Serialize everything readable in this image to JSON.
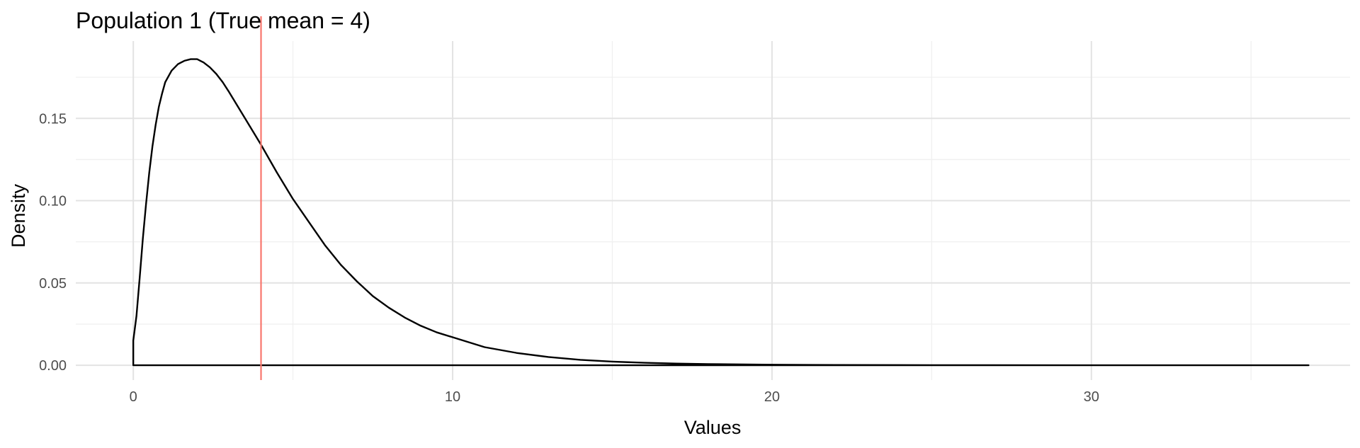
{
  "chart_data": {
    "type": "line",
    "title": "Population 1 (True mean = 4)",
    "xlabel": "Values",
    "ylabel": "Density",
    "xlim": [
      -1.8,
      38.1
    ],
    "ylim": [
      -0.009,
      0.197
    ],
    "x_ticks": [
      0,
      10,
      20,
      30
    ],
    "x_tick_labels": [
      "0",
      "10",
      "20",
      "30"
    ],
    "x_minor_ticks": [
      5,
      15,
      25,
      35
    ],
    "y_ticks": [
      0,
      0.05,
      0.1,
      0.15
    ],
    "y_tick_labels": [
      "0.00",
      "0.05",
      "0.10",
      "0.15"
    ],
    "y_minor_ticks": [
      0.025,
      0.075,
      0.125,
      0.175
    ],
    "grid": true,
    "legend": "none",
    "series": [
      {
        "color": "#000000",
        "x": [
          0,
          0,
          0.1,
          0.2,
          0.3,
          0.4,
          0.5,
          0.6,
          0.7,
          0.8,
          0.9,
          1.0,
          1.2,
          1.4,
          1.6,
          1.8,
          2.0,
          2.1,
          2.2,
          2.4,
          2.6,
          2.8,
          3.0,
          3.5,
          4.0,
          4.5,
          5.0,
          5.5,
          6.0,
          6.5,
          7.0,
          7.5,
          8.0,
          8.5,
          9.0,
          9.5,
          10.0,
          11.0,
          12.0,
          13.0,
          14.0,
          15.0,
          16.0,
          17.0,
          18.0,
          20.0,
          22.0,
          25.0,
          30.0,
          35.0,
          36.8,
          36.8
        ],
        "y": [
          0,
          0.015,
          0.03,
          0.053,
          0.077,
          0.098,
          0.117,
          0.133,
          0.146,
          0.157,
          0.165,
          0.172,
          0.179,
          0.183,
          0.185,
          0.186,
          0.186,
          0.185,
          0.184,
          0.181,
          0.177,
          0.172,
          0.166,
          0.15,
          0.134,
          0.117,
          0.101,
          0.087,
          0.073,
          0.061,
          0.051,
          0.042,
          0.035,
          0.029,
          0.024,
          0.02,
          0.017,
          0.011,
          0.0075,
          0.005,
          0.0033,
          0.0022,
          0.0015,
          0.001,
          0.0007,
          0.0003,
          0.00015,
          5e-05,
          2e-05,
          1e-05,
          0.0,
          0
        ]
      }
    ],
    "reference_lines": [
      {
        "orientation": "vertical",
        "x": 4,
        "color": "#f8766d"
      }
    ]
  }
}
